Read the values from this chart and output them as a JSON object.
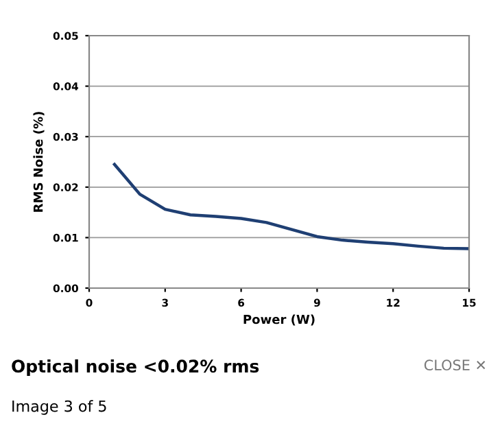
{
  "chart_data": {
    "type": "line",
    "xlabel": "Power (W)",
    "ylabel": "RMS Noise (%)",
    "x": [
      1,
      2,
      3,
      4,
      5,
      6,
      7,
      8,
      9,
      10,
      11,
      12,
      13,
      14,
      15
    ],
    "series": [
      {
        "color": "#1f3f73",
        "values": [
          0.0245,
          0.0186,
          0.0156,
          0.0145,
          0.0142,
          0.0138,
          0.013,
          0.0116,
          0.0102,
          0.0095,
          0.0091,
          0.0088,
          0.0083,
          0.0079,
          0.0078
        ]
      }
    ],
    "xlim": [
      0,
      15
    ],
    "xticks": [
      0,
      3,
      6,
      9,
      12,
      15
    ],
    "ylim": [
      0,
      0.05
    ],
    "yticks": [
      {
        "value": 0,
        "label": "0.00"
      },
      {
        "value": 0.01,
        "label": "0.01"
      },
      {
        "value": 0.02,
        "label": "0.02"
      },
      {
        "value": 0.03,
        "label": "0.03"
      },
      {
        "value": 0.04,
        "label": "0.04"
      },
      {
        "value": 0.05,
        "label": "0.05"
      }
    ],
    "grid": "y",
    "marker": "none",
    "line_style": "solid",
    "legend": false,
    "annotations": [
      "Optical noise <0.02% rms",
      "Image 3 of 5",
      "CLOSE ✕"
    ]
  }
}
